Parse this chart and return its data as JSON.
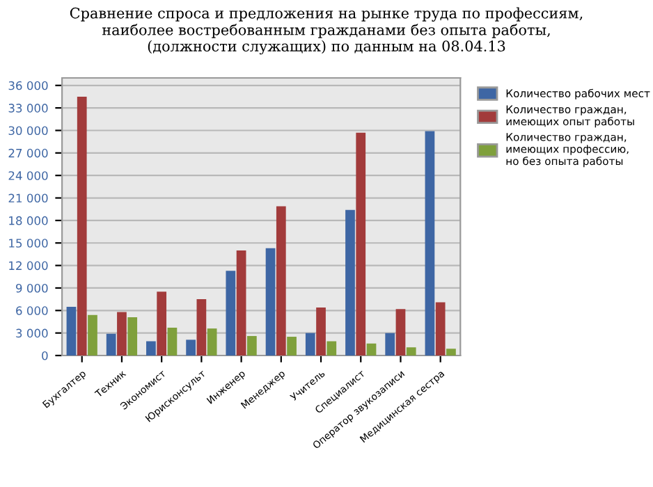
{
  "chart_data": {
    "type": "bar",
    "title": "Сравнение спроса и предложения на рынке труда по профессиям,\nнаиболее востребованным гражданами без опыта работы,\n(должности служащих) по данным на 08.04.13",
    "categories": [
      "Бухгалтер",
      "Техник",
      "Экономист",
      "Юрисконсульт",
      "Инженер",
      "Менеджер",
      "Учитель",
      "Специалист",
      "Оператор звукозаписи",
      "Медицинская сестра"
    ],
    "series": [
      {
        "name": "Количество рабочих мест",
        "color": "#3e66a4",
        "values": [
          6500,
          2900,
          1900,
          2100,
          11300,
          14300,
          3000,
          19400,
          3000,
          29900
        ]
      },
      {
        "name": "Количество граждан,\nимеющих опыт работы",
        "color": "#a23b3b",
        "values": [
          34500,
          5800,
          8500,
          7500,
          14000,
          19900,
          6400,
          29700,
          6200,
          7100
        ]
      },
      {
        "name": "Количество граждан,\nимеющих профессию,\nно без опыта работы",
        "color": "#7fa03c",
        "values": [
          5400,
          5100,
          3700,
          3600,
          2600,
          2500,
          1900,
          1600,
          1100,
          900
        ]
      }
    ],
    "ylim": [
      0,
      37000
    ],
    "yticks": [
      {
        "value": 0,
        "label": "0"
      },
      {
        "value": 3000,
        "label": "3 000"
      },
      {
        "value": 6000,
        "label": "6 000"
      },
      {
        "value": 9000,
        "label": "9 000"
      },
      {
        "value": 12000,
        "label": "12 000"
      },
      {
        "value": 15000,
        "label": "15 000"
      },
      {
        "value": 18000,
        "label": "18 000"
      },
      {
        "value": 21000,
        "label": "21 000"
      },
      {
        "value": 24000,
        "label": "24 000"
      },
      {
        "value": 27000,
        "label": "27 000"
      },
      {
        "value": 30000,
        "label": "30 000"
      },
      {
        "value": 33000,
        "label": "33 000"
      },
      {
        "value": 36000,
        "label": "36 000"
      }
    ],
    "grid": "y",
    "legend": "right"
  }
}
